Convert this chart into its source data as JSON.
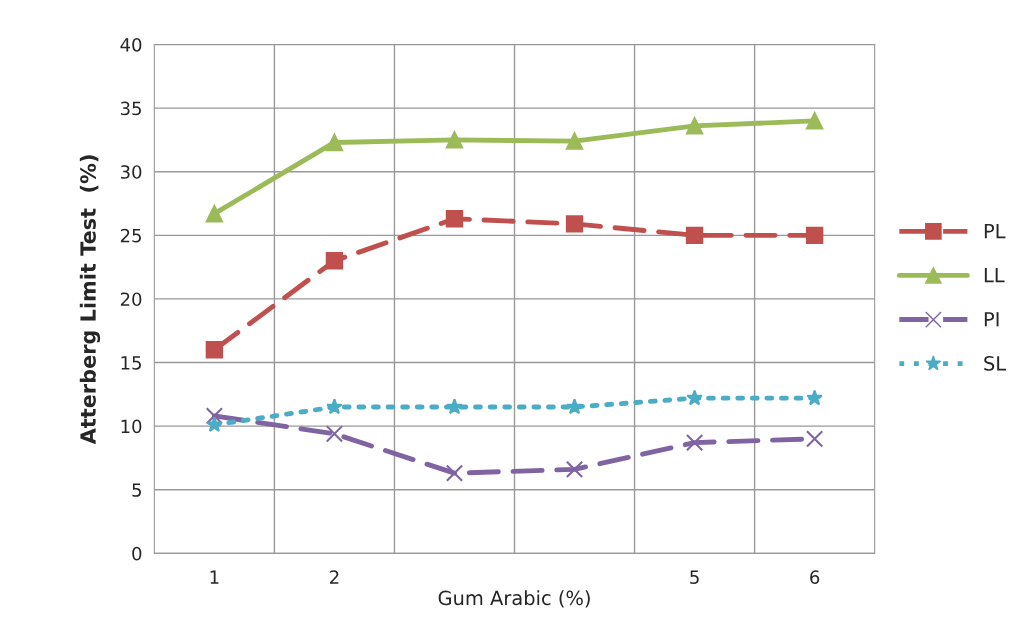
{
  "chart_data": {
    "type": "line",
    "xlabel": "Gum Arabic (%)",
    "ylabel": "Atterberg Limit Test  (%)",
    "categories": [
      "1",
      "2",
      null,
      null,
      "5",
      "6"
    ],
    "series": [
      {
        "name": "PL",
        "color": "#c0504d",
        "values": [
          16.0,
          23.0,
          26.3,
          25.9,
          25.0,
          25.0
        ],
        "marker": "square",
        "line_style": "dashed"
      },
      {
        "name": "LL",
        "color": "#9bbb59",
        "values": [
          26.7,
          32.3,
          32.5,
          32.4,
          33.6,
          34.0
        ],
        "marker": "triangle",
        "line_style": "solid"
      },
      {
        "name": "PI",
        "color": "#8064a2",
        "values": [
          10.8,
          9.4,
          6.3,
          6.6,
          8.7,
          9.0
        ],
        "marker": "cross",
        "line_style": "dashed"
      },
      {
        "name": "SL",
        "color": "#4bacc6",
        "values": [
          10.1,
          11.5,
          11.5,
          11.5,
          12.2,
          12.2
        ],
        "marker": "star",
        "line_style": "dotted"
      }
    ],
    "ylim": [
      0,
      40
    ],
    "yticks": [
      0,
      5,
      10,
      15,
      20,
      25,
      30,
      35,
      40
    ],
    "grid": true,
    "legend": "right"
  }
}
